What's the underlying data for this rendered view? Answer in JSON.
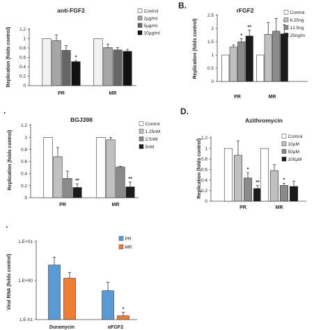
{
  "chart_data": [
    {
      "type": "bar",
      "panel": "",
      "title": "anti-FGF2",
      "ylabel": "Replication (folds control)",
      "ylim": [
        0,
        1.2
      ],
      "yticks": [
        "0",
        "0.2",
        "0.4",
        "0.6",
        "0.8",
        "1",
        "1.2"
      ],
      "categories": [
        "PR",
        "MR"
      ],
      "series": [
        {
          "name": "Control",
          "color": "#f2f2f2",
          "values": [
            1.0,
            1.0
          ],
          "errors": [
            0,
            0
          ],
          "stars": [
            "",
            ""
          ]
        },
        {
          "name": "2µg/ml",
          "color": "#a6a6a6",
          "values": [
            0.96,
            0.81
          ],
          "errors": [
            0.12,
            0.07
          ],
          "stars": [
            "",
            ""
          ]
        },
        {
          "name": "5µg/ml",
          "color": "#666666",
          "values": [
            0.75,
            0.76
          ],
          "errors": [
            0.1,
            0.05
          ],
          "stars": [
            "",
            ""
          ]
        },
        {
          "name": "10µg/ml",
          "color": "#111111",
          "values": [
            0.51,
            0.73
          ],
          "errors": [
            0.02,
            0.04
          ],
          "stars": [
            "*",
            ""
          ]
        }
      ]
    },
    {
      "type": "bar",
      "panel": "B.",
      "title": "rFGF2",
      "ylabel": "Replication (folds control)",
      "ylim": [
        0,
        2.5
      ],
      "yticks": [
        "0",
        "0.5",
        "1",
        "1.5",
        "2",
        "2.5"
      ],
      "categories": [
        "PR",
        "MR"
      ],
      "series": [
        {
          "name": "Control",
          "color": "#ffffff",
          "values": [
            1.0,
            1.0
          ],
          "errors": [
            0,
            0
          ],
          "stars": [
            "",
            ""
          ]
        },
        {
          "name": "6.25ng",
          "color": "#c0c0c0",
          "values": [
            1.3,
            1.78
          ],
          "errors": [
            0.08,
            0.45
          ],
          "stars": [
            "",
            ""
          ]
        },
        {
          "name": "12.5ng",
          "color": "#8a8a8a",
          "values": [
            1.5,
            1.9
          ],
          "errors": [
            0.12,
            0.48
          ],
          "stars": [
            "*",
            ""
          ]
        },
        {
          "name": "25ng/m",
          "color": "#1a1a1a",
          "values": [
            1.72,
            1.8
          ],
          "errors": [
            0.22,
            0.35
          ],
          "stars": [
            "**",
            "*"
          ]
        }
      ]
    },
    {
      "type": "bar",
      "panel": ".",
      "title": "BGJ398",
      "ylabel": "Replication (folds control)",
      "ylim": [
        0,
        1.2
      ],
      "yticks": [
        "0",
        "0.2",
        "0.4",
        "0.6",
        "0.8",
        "1",
        "1.2"
      ],
      "categories": [
        "PR",
        "MR"
      ],
      "series": [
        {
          "name": "Control",
          "color": "#ffffff",
          "values": [
            1.0,
            1.0
          ],
          "errors": [
            0,
            0
          ],
          "stars": [
            "",
            ""
          ]
        },
        {
          "name": "1.25nM",
          "color": "#c0c0c0",
          "values": [
            0.68,
            0.96
          ],
          "errors": [
            0.15,
            0.04
          ],
          "stars": [
            "",
            ""
          ]
        },
        {
          "name": "2.5nM",
          "color": "#8a8a8a",
          "values": [
            0.32,
            0.51
          ],
          "errors": [
            0.12,
            0.01
          ],
          "stars": [
            "",
            ""
          ]
        },
        {
          "name": "5nM",
          "color": "#1a1a1a",
          "values": [
            0.17,
            0.18
          ],
          "errors": [
            0.06,
            0.08
          ],
          "stars": [
            "**",
            "**"
          ]
        }
      ]
    },
    {
      "type": "bar",
      "panel": "D.",
      "title": "Azithromycin",
      "ylabel": "Replication (folds control)",
      "ylim": [
        0,
        1.2
      ],
      "yticks": [
        "0",
        "0.2",
        "0.4",
        "0.6",
        "0.8",
        "1",
        "1.2"
      ],
      "categories": [
        "PR",
        "MR"
      ],
      "series": [
        {
          "name": "Control",
          "color": "#ffffff",
          "values": [
            1.0,
            1.0
          ],
          "errors": [
            0,
            0
          ],
          "stars": [
            "",
            ""
          ]
        },
        {
          "name": "10µM",
          "color": "#c0c0c0",
          "values": [
            0.87,
            0.58
          ],
          "errors": [
            0.27,
            0.11
          ],
          "stars": [
            "",
            ""
          ]
        },
        {
          "name": "50µM",
          "color": "#8a8a8a",
          "values": [
            0.44,
            0.3
          ],
          "errors": [
            0.1,
            0.04
          ],
          "stars": [
            "*",
            "*"
          ]
        },
        {
          "name": "100µM",
          "color": "#1a1a1a",
          "values": [
            0.24,
            0.28
          ],
          "errors": [
            0.06,
            0.1
          ],
          "stars": [
            "**",
            ""
          ]
        }
      ]
    },
    {
      "type": "bar",
      "panel": ".",
      "title": "",
      "ylabel": "Viral RNA (folds control)",
      "yscale": "log",
      "ylim": [
        0.1,
        10
      ],
      "yticks": [
        "1.E-01",
        "1.E+00",
        "1.E+01"
      ],
      "categories": [
        "Duramycin",
        "αFGF2"
      ],
      "series": [
        {
          "name": "PR",
          "color": "#5b9bd5",
          "values": [
            2.5,
            0.55
          ],
          "errors": [
            1.5,
            0.35
          ],
          "stars": [
            "",
            ""
          ]
        },
        {
          "name": "MR",
          "color": "#ed7d31",
          "values": [
            1.15,
            0.125
          ],
          "errors": [
            0.45,
            0.03
          ],
          "stars": [
            "",
            "*"
          ]
        }
      ]
    }
  ]
}
